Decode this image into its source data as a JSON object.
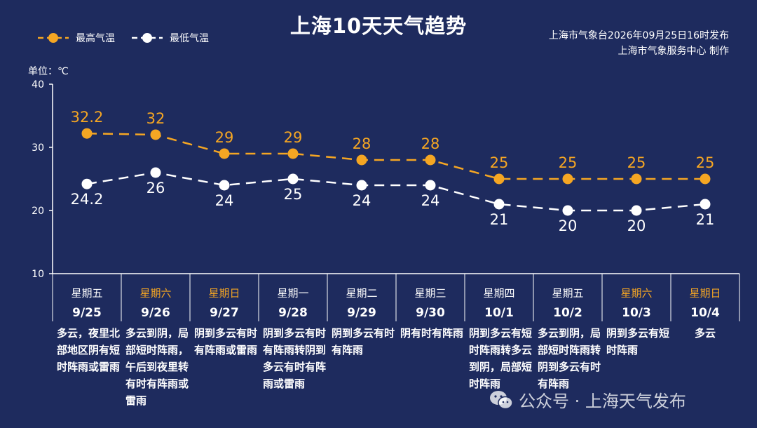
{
  "title": "上海10天天气趋势",
  "legend": {
    "high": "最高气温",
    "low": "最低气温"
  },
  "issuer": {
    "line1": "上海市气象台2026年09月25日16时发布",
    "line2": "上海市气象服务中心  制作"
  },
  "unit_label": "单位：℃",
  "colors": {
    "background": "#1e2b5e",
    "high": "#f5a623",
    "low": "#ffffff",
    "weekend": "#f5a623"
  },
  "chart_data": {
    "type": "line",
    "categories": [
      "9/25",
      "9/26",
      "9/27",
      "9/28",
      "9/29",
      "9/30",
      "10/1",
      "10/2",
      "10/3",
      "10/4"
    ],
    "series": [
      {
        "name": "最高气温",
        "values": [
          32.2,
          32,
          29,
          29,
          28,
          28,
          25,
          25,
          25,
          25
        ],
        "labels": [
          "32.2",
          "32",
          "29",
          "29",
          "28",
          "28",
          "25",
          "25",
          "25",
          "25"
        ]
      },
      {
        "name": "最低气温",
        "values": [
          24.2,
          26,
          24,
          25,
          24,
          24,
          21,
          20,
          20,
          21
        ],
        "labels": [
          "24.2",
          "26",
          "24",
          "25",
          "24",
          "24",
          "21",
          "20",
          "20",
          "21"
        ]
      }
    ],
    "ylim": [
      10,
      40
    ],
    "yticks": [
      "10",
      "20",
      "30",
      "40"
    ],
    "yunit": "单位：℃",
    "grid": false,
    "legend": "top-left"
  },
  "days": [
    {
      "weekday": "星期五",
      "date": "9/25",
      "weekend": false,
      "desc": "多云，夜里北部地区阴有短时阵雨或雷雨"
    },
    {
      "weekday": "星期六",
      "date": "9/26",
      "weekend": true,
      "desc": "多云到阴，局部短时阵雨，午后到夜里转有时有阵雨或雷雨"
    },
    {
      "weekday": "星期日",
      "date": "9/27",
      "weekend": true,
      "desc": "阴到多云有时有阵雨或雷雨"
    },
    {
      "weekday": "星期一",
      "date": "9/28",
      "weekend": false,
      "desc": "阴到多云有时有阵雨转阴到多云有时有阵雨或雷雨"
    },
    {
      "weekday": "星期二",
      "date": "9/29",
      "weekend": false,
      "desc": "阴到多云有时有阵雨"
    },
    {
      "weekday": "星期三",
      "date": "9/30",
      "weekend": false,
      "desc": "阴有时有阵雨"
    },
    {
      "weekday": "星期四",
      "date": "10/1",
      "weekend": false,
      "desc": "阴到多云有短时阵雨转多云到阴，局部短时阵雨"
    },
    {
      "weekday": "星期五",
      "date": "10/2",
      "weekend": false,
      "desc": "多云到阴，局部短时阵雨转阴到多云有时有阵雨"
    },
    {
      "weekday": "星期六",
      "date": "10/3",
      "weekend": true,
      "desc": "阴到多云有短时阵雨"
    },
    {
      "weekday": "星期日",
      "date": "10/4",
      "weekend": true,
      "desc": "多云"
    }
  ],
  "watermark": "公众号 · 上海天气发布",
  "watermark_icon": "wechat-icon"
}
